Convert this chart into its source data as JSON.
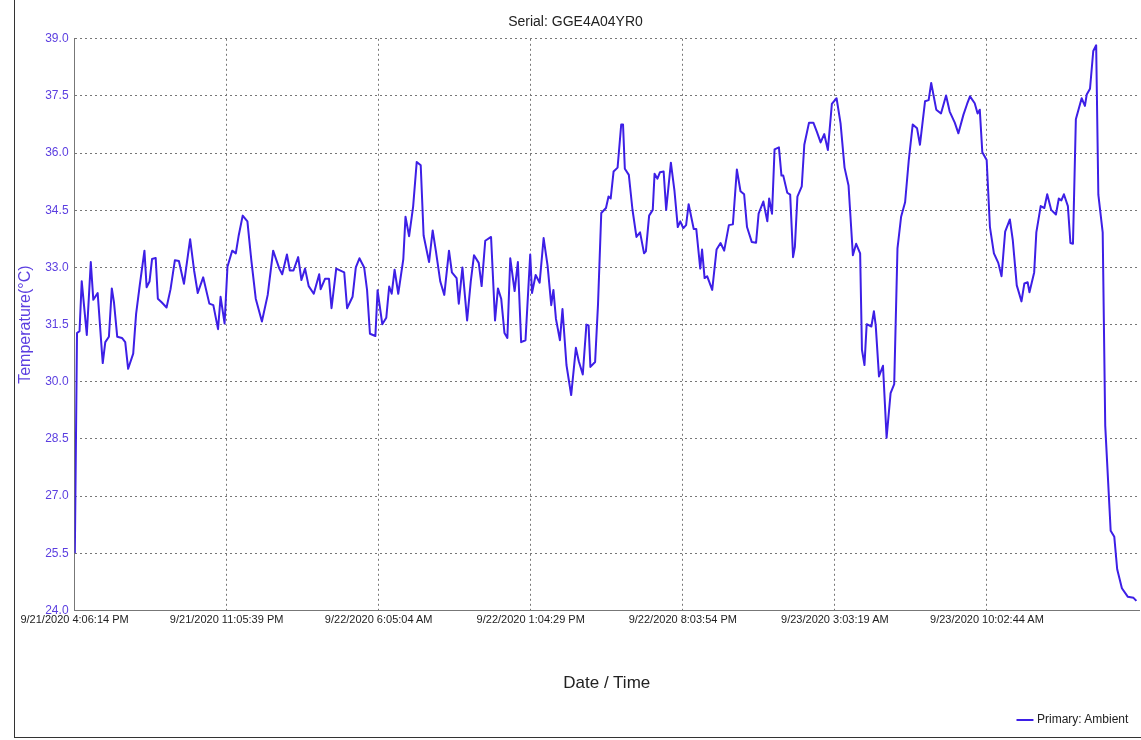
{
  "chart_data": {
    "type": "line",
    "title": "Serial: GGE4A04YR0",
    "xlabel": "Date / Time",
    "ylabel": "Temperature(°C)",
    "xlim": [
      "2020-09-21T16:06:14",
      "2020-09-23T17:02:09"
    ],
    "xticks": [
      {
        "value": "2020-09-21T16:06:14",
        "label": "9/21/2020 4:06:14 PM"
      },
      {
        "value": "2020-09-21T23:05:39",
        "label": "9/21/2020 11:05:39 PM"
      },
      {
        "value": "2020-09-22T06:05:04",
        "label": "9/22/2020 6:05:04 AM"
      },
      {
        "value": "2020-09-22T13:04:29",
        "label": "9/22/2020 1:04:29 PM"
      },
      {
        "value": "2020-09-22T20:03:54",
        "label": "9/22/2020 8:03:54 PM"
      },
      {
        "value": "2020-09-23T03:03:19",
        "label": "9/23/2020 3:03:19 AM"
      },
      {
        "value": "2020-09-23T10:02:44",
        "label": "9/23/2020 10:02:44 AM"
      }
    ],
    "ylim": [
      24,
      39
    ],
    "yticks": [
      {
        "value": 24,
        "label": "24.0"
      },
      25.5,
      {
        "value": 27,
        "label": "27.0"
      },
      28.5,
      {
        "value": 30,
        "label": "30.0"
      },
      31.5,
      {
        "value": 33,
        "label": "33.0"
      },
      34.5,
      {
        "value": 36,
        "label": "36.0"
      },
      37.5,
      {
        "value": 39,
        "label": "39.0"
      }
    ],
    "grid": true,
    "legend": "bottom right",
    "marker": "none",
    "line_style": "solid",
    "series": [
      {
        "name": "Primary: Ambient",
        "color": "#3d1fe6",
        "x": [
          "2020-09-21T16:07",
          "2020-09-21T16:13",
          "2020-09-21T16:20",
          "2020-09-21T16:26",
          "2020-09-21T16:40",
          "2020-09-21T16:51",
          "2020-09-21T16:58",
          "2020-09-21T17:10",
          "2020-09-21T17:22",
          "2020-09-21T17:24",
          "2020-09-21T17:31",
          "2020-09-21T17:41",
          "2020-09-21T17:49",
          "2020-09-21T17:55",
          "2020-09-21T18:04",
          "2020-09-21T18:17",
          "2020-09-21T18:26",
          "2020-09-21T18:34",
          "2020-09-21T18:48",
          "2020-09-21T18:56",
          "2020-09-21T19:06",
          "2020-09-21T19:19",
          "2020-09-21T19:25",
          "2020-09-21T19:33",
          "2020-09-21T19:40",
          "2020-09-21T19:50",
          "2020-09-21T19:56",
          "2020-09-21T20:07",
          "2020-09-21T20:20",
          "2020-09-21T20:31",
          "2020-09-21T20:43",
          "2020-09-21T20:54",
          "2020-09-21T21:08",
          "2020-09-21T21:25",
          "2020-09-21T21:36",
          "2020-09-21T21:46",
          "2020-09-21T22:01",
          "2020-09-21T22:18",
          "2020-09-21T22:29",
          "2020-09-21T22:42",
          "2020-09-21T22:49",
          "2020-09-21T23:00",
          "2020-09-21T23:08",
          "2020-09-21T23:21",
          "2020-09-21T23:31",
          "2020-09-21T23:39",
          "2020-09-21T23:50",
          "2020-09-22T00:03",
          "2020-09-22T00:14",
          "2020-09-22T00:26",
          "2020-09-22T00:43",
          "2020-09-22T00:59",
          "2020-09-22T01:14",
          "2020-09-22T01:31",
          "2020-09-22T01:39",
          "2020-09-22T01:52",
          "2020-09-22T02:00",
          "2020-09-22T02:10",
          "2020-09-22T02:23",
          "2020-09-22T02:32",
          "2020-09-22T02:42",
          "2020-09-22T02:52",
          "2020-09-22T03:06",
          "2020-09-22T03:21",
          "2020-09-22T03:25",
          "2020-09-22T03:37",
          "2020-09-22T03:48",
          "2020-09-22T03:55",
          "2020-09-22T04:08",
          "2020-09-22T04:30",
          "2020-09-22T04:38",
          "2020-09-22T04:53",
          "2020-09-22T05:02",
          "2020-09-22T05:12",
          "2020-09-22T05:25",
          "2020-09-22T05:33",
          "2020-09-22T05:41",
          "2020-09-22T05:56",
          "2020-09-22T06:02",
          "2020-09-22T06:15",
          "2020-09-22T06:26",
          "2020-09-22T06:34",
          "2020-09-22T06:41",
          "2020-09-22T06:49",
          "2020-09-22T06:59",
          "2020-09-22T07:13",
          "2020-09-22T07:19",
          "2020-09-22T07:29",
          "2020-09-22T07:40",
          "2020-09-22T07:50",
          "2020-09-22T08:01",
          "2020-09-22T08:09",
          "2020-09-22T08:24",
          "2020-09-22T08:34",
          "2020-09-22T08:43",
          "2020-09-22T08:55",
          "2020-09-22T09:06",
          "2020-09-22T09:19",
          "2020-09-22T09:27",
          "2020-09-22T09:40",
          "2020-09-22T09:46",
          "2020-09-22T09:56",
          "2020-09-22T10:09",
          "2020-09-22T10:19",
          "2020-09-22T10:28",
          "2020-09-22T10:41",
          "2020-09-22T10:49",
          "2020-09-22T10:59",
          "2020-09-22T11:15",
          "2020-09-22T11:26",
          "2020-09-22T11:34",
          "2020-09-22T11:43",
          "2020-09-22T11:52",
          "2020-09-22T12:00",
          "2020-09-22T12:08",
          "2020-09-22T12:20",
          "2020-09-22T12:29",
          "2020-09-22T12:38",
          "2020-09-22T12:50",
          "2020-09-22T13:03",
          "2020-09-22T13:08",
          "2020-09-22T13:18",
          "2020-09-22T13:29",
          "2020-09-22T13:40",
          "2020-09-22T13:51",
          "2020-09-22T14:01",
          "2020-09-22T14:07",
          "2020-09-22T14:14",
          "2020-09-22T14:25",
          "2020-09-22T14:32",
          "2020-09-22T14:43",
          "2020-09-22T14:56",
          "2020-09-22T15:09",
          "2020-09-22T15:17",
          "2020-09-22T15:28",
          "2020-09-22T15:38",
          "2020-09-22T15:44",
          "2020-09-22T15:49",
          "2020-09-22T16:02",
          "2020-09-22T16:10",
          "2020-09-22T16:19",
          "2020-09-22T16:32",
          "2020-09-22T16:39",
          "2020-09-22T16:45",
          "2020-09-22T16:53",
          "2020-09-22T17:04",
          "2020-09-22T17:14",
          "2020-09-22T17:19",
          "2020-09-22T17:24",
          "2020-09-22T17:35",
          "2020-09-22T17:45",
          "2020-09-22T17:56",
          "2020-09-22T18:06",
          "2020-09-22T18:17",
          "2020-09-22T18:22",
          "2020-09-22T18:31",
          "2020-09-22T18:41",
          "2020-09-22T18:46",
          "2020-09-22T18:54",
          "2020-09-22T19:01",
          "2020-09-22T19:11",
          "2020-09-22T19:18",
          "2020-09-22T19:31",
          "2020-09-22T19:41",
          "2020-09-22T19:50",
          "2020-09-22T19:57",
          "2020-09-22T20:05",
          "2020-09-22T20:13",
          "2020-09-22T20:20",
          "2020-09-22T20:34",
          "2020-09-22T20:41",
          "2020-09-22T20:52",
          "2020-09-22T20:57",
          "2020-09-22T21:04",
          "2020-09-22T21:11",
          "2020-09-22T21:25",
          "2020-09-22T21:37",
          "2020-09-22T21:48",
          "2020-09-22T21:58",
          "2020-09-22T22:11",
          "2020-09-22T22:22",
          "2020-09-22T22:33",
          "2020-09-22T22:43",
          "2020-09-22T22:53",
          "2020-09-22T23:01",
          "2020-09-22T23:14",
          "2020-09-22T23:26",
          "2020-09-22T23:33",
          "2020-09-22T23:46",
          "2020-09-22T23:57",
          "2020-09-23T00:02",
          "2020-09-23T00:10",
          "2020-09-23T00:17",
          "2020-09-23T00:29",
          "2020-09-23T00:36",
          "2020-09-23T00:41",
          "2020-09-23T00:52",
          "2020-09-23T01:00",
          "2020-09-23T01:08",
          "2020-09-23T01:13",
          "2020-09-23T01:20",
          "2020-09-23T01:32",
          "2020-09-23T01:39",
          "2020-09-23T01:52",
          "2020-09-23T02:04",
          "2020-09-23T02:14",
          "2020-09-23T02:24",
          "2020-09-23T02:34",
          "2020-09-23T02:44",
          "2020-09-23T02:55",
          "2020-09-23T03:08",
          "2020-09-23T03:19",
          "2020-09-23T03:30",
          "2020-09-23T03:41",
          "2020-09-23T03:53",
          "2020-09-23T04:02",
          "2020-09-23T04:13",
          "2020-09-23T04:18",
          "2020-09-23T04:25",
          "2020-09-23T04:31",
          "2020-09-23T04:44",
          "2020-09-23T04:51",
          "2020-09-23T04:56",
          "2020-09-23T05:05",
          "2020-09-23T05:16",
          "2020-09-23T05:26",
          "2020-09-23T05:37",
          "2020-09-23T05:47",
          "2020-09-23T05:56",
          "2020-09-23T06:06",
          "2020-09-23T06:17",
          "2020-09-23T06:27",
          "2020-09-23T06:38",
          "2020-09-23T06:50",
          "2020-09-23T06:58",
          "2020-09-23T07:12",
          "2020-09-23T07:22",
          "2020-09-23T07:29",
          "2020-09-23T07:43",
          "2020-09-23T07:56",
          "2020-09-23T08:10",
          "2020-09-23T08:20",
          "2020-09-23T08:34",
          "2020-09-23T08:44",
          "2020-09-23T08:58",
          "2020-09-23T09:08",
          "2020-09-23T09:16",
          "2020-09-23T09:29",
          "2020-09-23T09:37",
          "2020-09-23T09:43",
          "2020-09-23T09:50",
          "2020-09-23T10:02",
          "2020-09-23T10:11",
          "2020-09-23T10:22",
          "2020-09-23T10:34",
          "2020-09-23T10:43",
          "2020-09-23T10:53",
          "2020-09-23T11:06",
          "2020-09-23T11:14",
          "2020-09-23T11:25",
          "2020-09-23T11:38",
          "2020-09-23T11:46",
          "2020-09-23T11:55",
          "2020-09-23T12:00",
          "2020-09-23T12:13",
          "2020-09-23T12:19",
          "2020-09-23T12:31",
          "2020-09-23T12:41",
          "2020-09-23T12:49",
          "2020-09-23T13:00",
          "2020-09-23T13:13",
          "2020-09-23T13:21",
          "2020-09-23T13:28",
          "2020-09-23T13:35",
          "2020-09-23T13:46",
          "2020-09-23T13:53",
          "2020-09-23T14:00",
          "2020-09-23T14:08",
          "2020-09-23T14:24",
          "2020-09-23T14:33",
          "2020-09-23T14:38",
          "2020-09-23T14:47",
          "2020-09-23T14:56",
          "2020-09-23T15:04",
          "2020-09-23T15:10",
          "2020-09-23T15:22",
          "2020-09-23T15:29",
          "2020-09-23T15:44",
          "2020-09-23T15:54",
          "2020-09-23T16:02",
          "2020-09-23T16:15",
          "2020-09-23T16:31",
          "2020-09-23T16:47",
          "2020-09-23T16:55"
        ],
        "values": [
          25.5,
          31.28,
          31.33,
          32.64,
          31.23,
          33.14,
          32.15,
          32.33,
          30.74,
          30.49,
          31.04,
          31.18,
          32.45,
          32.08,
          31.18,
          31.15,
          31.04,
          30.34,
          30.74,
          31.78,
          32.53,
          33.44,
          32.48,
          32.63,
          33.22,
          33.25,
          32.18,
          32.08,
          31.95,
          32.43,
          33.19,
          33.17,
          32.57,
          33.74,
          32.92,
          32.33,
          32.74,
          32.05,
          32.01,
          31.38,
          32.23,
          31.53,
          33.02,
          33.44,
          33.37,
          33.84,
          34.36,
          34.21,
          33.17,
          32.18,
          31.58,
          32.28,
          33.44,
          32.97,
          32.82,
          33.34,
          32.92,
          32.92,
          33.27,
          32.67,
          32.97,
          32.51,
          32.31,
          32.82,
          32.43,
          32.7,
          32.7,
          31.93,
          32.97,
          32.87,
          31.93,
          32.23,
          33.0,
          33.24,
          33.0,
          32.41,
          31.26,
          31.2,
          32.4,
          31.51,
          31.68,
          32.5,
          32.31,
          32.94,
          32.31,
          33.22,
          34.33,
          33.82,
          34.59,
          35.77,
          35.68,
          33.84,
          33.14,
          33.97,
          33.42,
          32.63,
          32.28,
          33.44,
          32.87,
          32.72,
          32.05,
          33.0,
          31.61,
          32.63,
          33.32,
          33.12,
          32.51,
          33.7,
          33.8,
          31.61,
          32.45,
          32.18,
          31.28,
          31.15,
          33.24,
          32.38,
          33.14,
          31.04,
          31.09,
          33.34,
          32.33,
          32.8,
          32.6,
          33.77,
          33.04,
          32.01,
          32.41,
          31.65,
          31.09,
          31.91,
          30.44,
          29.65,
          30.89,
          30.54,
          30.19,
          31.5,
          31.48,
          30.39,
          30.52,
          32.03,
          34.43,
          34.56,
          34.86,
          34.81,
          35.52,
          35.62,
          36.75,
          36.75,
          35.59,
          35.43,
          34.52,
          33.8,
          33.92,
          33.37,
          33.42,
          34.36,
          34.51,
          35.46,
          35.33,
          35.5,
          35.52,
          34.51,
          35.75,
          35.0,
          34.06,
          34.21,
          34.03,
          34.11,
          34.66,
          34.01,
          34.01,
          32.97,
          33.47,
          32.72,
          32.77,
          32.41,
          33.47,
          33.64,
          33.44,
          34.11,
          34.13,
          35.57,
          35.0,
          34.92,
          34.06,
          33.67,
          33.65,
          34.41,
          34.73,
          34.21,
          34.81,
          34.41,
          36.1,
          36.15,
          35.41,
          35.41,
          34.96,
          34.91,
          33.27,
          33.54,
          34.86,
          35.13,
          36.22,
          36.8,
          36.8,
          36.55,
          36.28,
          36.5,
          36.08,
          37.29,
          37.44,
          36.78,
          35.62,
          35.15,
          33.32,
          33.62,
          33.37,
          30.84,
          30.44,
          31.51,
          31.45,
          31.85,
          31.48,
          30.14,
          30.42,
          28.53,
          29.7,
          29.94,
          33.5,
          34.33,
          34.71,
          35.8,
          36.75,
          36.65,
          36.22,
          37.36,
          37.39,
          37.84,
          37.14,
          37.04,
          37.51,
          37.09,
          36.8,
          36.52,
          37.01,
          37.29,
          37.49,
          37.31,
          37.04,
          37.14,
          36.02,
          35.82,
          34.06,
          33.37,
          33.12,
          32.77,
          33.94,
          34.26,
          33.72,
          32.53,
          32.11,
          32.58,
          32.61,
          32.35,
          32.87,
          33.92,
          34.61,
          34.56,
          34.92,
          34.51,
          34.39,
          34.81,
          34.76,
          34.92,
          34.61,
          33.64,
          33.62,
          36.89,
          37.44,
          37.24,
          37.54,
          37.69,
          38.68,
          38.83,
          34.91,
          33.92,
          28.85,
          26.09,
          25.93,
          25.08,
          24.58,
          24.36,
          24.33,
          24.25
        ]
      }
    ]
  }
}
